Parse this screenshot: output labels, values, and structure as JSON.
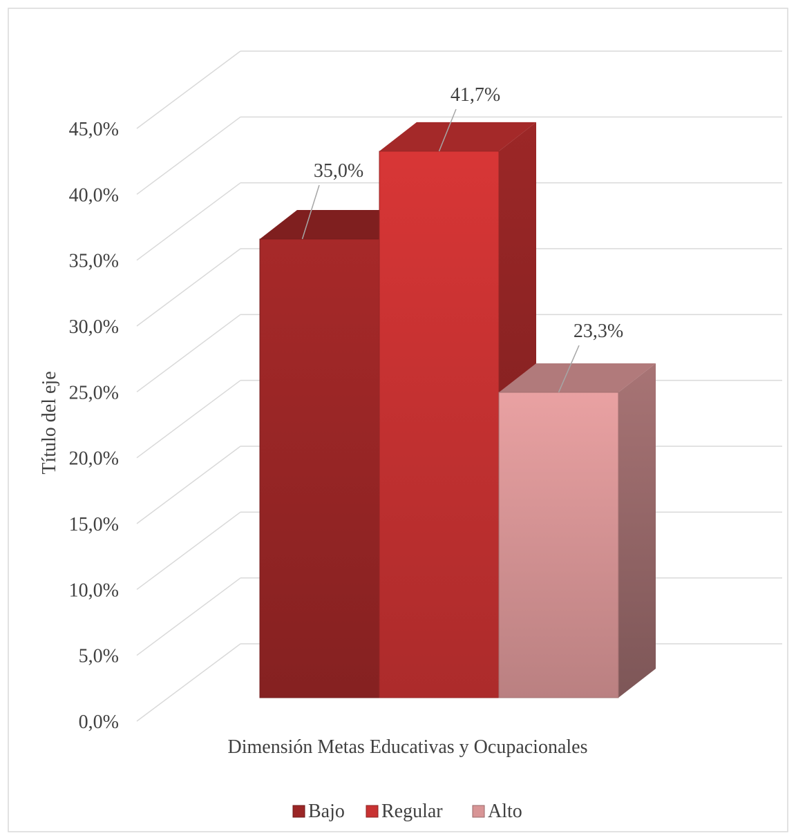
{
  "chart_data": {
    "type": "bar",
    "categories": [
      "Dimensión Metas Educativas y Ocupacionales"
    ],
    "xlabel": "Dimensión Metas Educativas y Ocupacionales",
    "ylabel": "Título del eje",
    "ylim": [
      0,
      45
    ],
    "ytick_step": 5,
    "ytick_labels": [
      "0,0%",
      "5,0%",
      "10,0%",
      "15,0%",
      "20,0%",
      "25,0%",
      "30,0%",
      "35,0%",
      "40,0%",
      "45,0%"
    ],
    "grid": true,
    "legend_position": "bottom",
    "series": [
      {
        "name": "Bajo",
        "values": [
          35.0
        ],
        "label": "35,0%",
        "color": "#9b2626"
      },
      {
        "name": "Regular",
        "values": [
          41.7
        ],
        "label": "41,7%",
        "color": "#c83232"
      },
      {
        "name": "Alto",
        "values": [
          23.3
        ],
        "label": "23,3%",
        "color": "#d89596"
      }
    ]
  }
}
